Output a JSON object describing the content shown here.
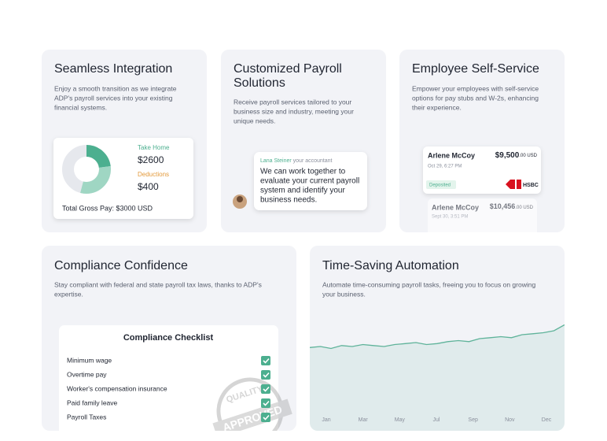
{
  "integration": {
    "title": "Seamless Integration",
    "description": [
      "Enjoy a smooth transition as we integrate",
      "ADP's payroll services into your existing",
      "financial systems."
    ],
    "take_home_label": "Take Home",
    "take_home": "$2600",
    "deductions_label": "Deductions",
    "deductions": "$400",
    "total": "Total Gross Pay: $3000 USD"
  },
  "customized": {
    "title": [
      "Customized Payroll",
      "Solutions"
    ],
    "description": [
      "Receive payroll services tailored to your",
      "business size and industry, meeting your",
      "unique needs."
    ],
    "sender": "Lana Steiner",
    "role": "your accountant",
    "message": [
      "We can work together to",
      "evaluate your current payroll",
      "system and identify your",
      "business needs."
    ]
  },
  "self_service": {
    "title": "Employee Self-Service",
    "description": [
      "Empower your employees with self-service",
      "options for pay stubs and W-2s, enhancing",
      "their experience."
    ],
    "stubs": [
      {
        "name": "Arlene McCoy",
        "date": "Oct 29, 6:27 PM",
        "amount": "$9,500",
        "cents": ".00 USD",
        "status": "Deposited",
        "bank": "HSBC"
      },
      {
        "name": "Arlene McCoy",
        "date": "Sept 30, 3:51 PM",
        "amount": "$10,456",
        "cents": ".00 USD"
      }
    ]
  },
  "compliance": {
    "title": "Compliance Confidence",
    "description": [
      "Stay compliant with federal and state payroll tax laws, thanks to ADP's",
      "expertise."
    ],
    "checklist_title": "Compliance Checklist",
    "items": [
      "Minimum wage",
      "Overtime pay",
      "Worker's compensation insurance",
      "Paid family leave",
      "Payroll Taxes"
    ],
    "stamp": [
      "QUALITY",
      "APPROVED"
    ]
  },
  "automation": {
    "title": "Time-Saving Automation",
    "description": [
      "Automate time-consuming payroll tasks, freeing you to focus on growing",
      "your business."
    ],
    "chart_data": {
      "type": "area",
      "color": "#5fb39a",
      "x_labels": [
        "Jan",
        "Mar",
        "May",
        "Jul",
        "Sep",
        "Nov",
        "Dec"
      ],
      "ylim": [
        0,
        100
      ],
      "values": [
        63,
        64,
        62,
        65,
        64,
        66,
        65,
        64,
        66,
        67,
        68,
        66,
        67,
        69,
        70,
        69,
        72,
        73,
        74,
        73,
        76,
        77,
        78,
        80,
        86
      ]
    }
  }
}
